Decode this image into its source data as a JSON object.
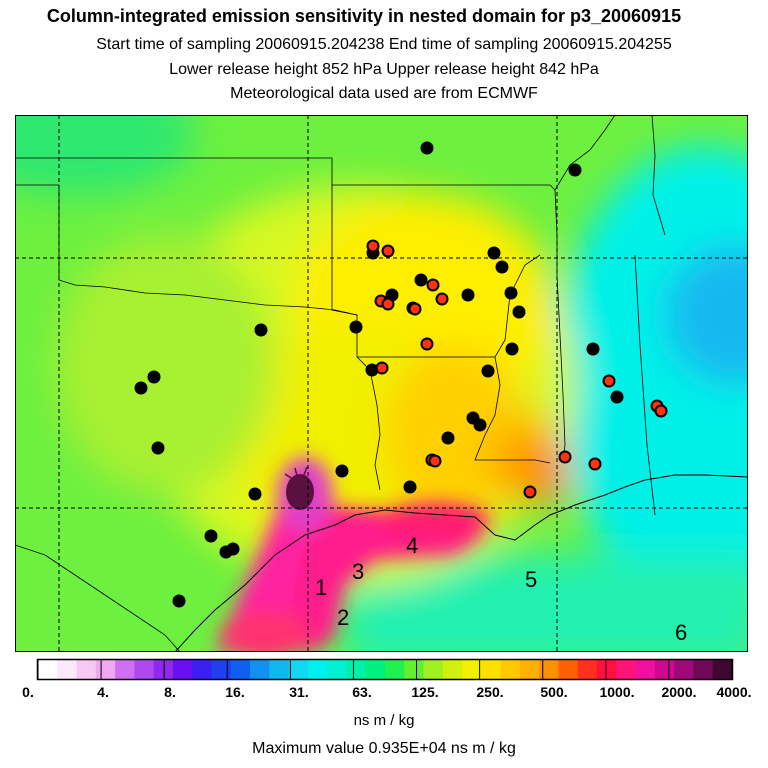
{
  "title": "Column-integrated emission sensitivity in nested domain for p3_20060915",
  "line1": "Start time of sampling 20060915.204238     End time of sampling 20060915.204255",
  "line2": "Lower release height  852 hPa       Upper release height  842 hPa",
  "line3": "Meteorological data used are from ECMWF",
  "colorbar": {
    "labels": [
      "0.",
      "4.",
      "8.",
      "16.",
      "31.",
      "63.",
      "125.",
      "250.",
      "500.",
      "1000.",
      "2000.",
      "4000."
    ],
    "units": "ns m / kg"
  },
  "max_value": "Maximum value  0.935E+04 ns m / kg",
  "region_labels": [
    "1",
    "2",
    "3",
    "4",
    "5",
    "6"
  ],
  "colors": {
    "black_marker": "#000000",
    "red_marker": "#ff3311",
    "max_sensitivity": "#5a1040",
    "high": "#ff1493",
    "mid": "#ffd000",
    "low": "#00e8d0"
  }
}
